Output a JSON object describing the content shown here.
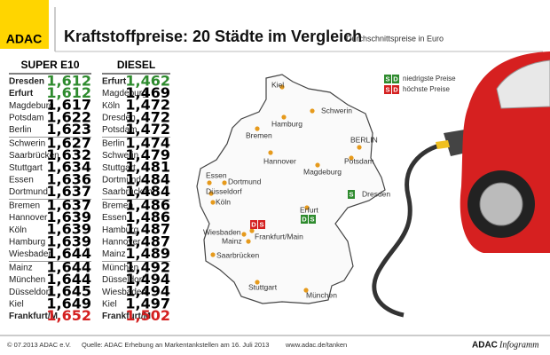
{
  "header": {
    "logo": "ADAC",
    "title": "Kraftstoffpreise: 20 Städte im Vergleich",
    "subtitle": "Durchschnittspreise in Euro"
  },
  "tables": [
    {
      "title": "SUPER E10",
      "rows": [
        {
          "city": "Dresden",
          "price": "1,612",
          "color": "#2e8b2e"
        },
        {
          "city": "Erfurt",
          "price": "1,612",
          "color": "#2e8b2e"
        },
        {
          "city": "Magdeburg",
          "price": "1,617"
        },
        {
          "city": "Potsdam",
          "price": "1,622"
        },
        {
          "city": "Berlin",
          "price": "1,623"
        },
        {
          "city": "Schwerin",
          "price": "1,627"
        },
        {
          "city": "Saarbrücken",
          "price": "1,632"
        },
        {
          "city": "Stuttgart",
          "price": "1,634"
        },
        {
          "city": "Essen",
          "price": "1,636"
        },
        {
          "city": "Dortmund",
          "price": "1,637"
        },
        {
          "city": "Bremen",
          "price": "1,637"
        },
        {
          "city": "Hannover",
          "price": "1,639"
        },
        {
          "city": "Köln",
          "price": "1,639"
        },
        {
          "city": "Hamburg",
          "price": "1,639"
        },
        {
          "city": "Wiesbaden",
          "price": "1,644"
        },
        {
          "city": "Mainz",
          "price": "1,644"
        },
        {
          "city": "München",
          "price": "1,644"
        },
        {
          "city": "Düsseldorf",
          "price": "1,645"
        },
        {
          "city": "Kiel",
          "price": "1,649"
        },
        {
          "city": "Frankfurt/M",
          "price": "1,652",
          "color": "#d42020"
        }
      ]
    },
    {
      "title": "DIESEL",
      "rows": [
        {
          "city": "Erfurt",
          "price": "1,462",
          "color": "#2e8b2e"
        },
        {
          "city": "Magdeburg",
          "price": "1,469"
        },
        {
          "city": "Köln",
          "price": "1,472"
        },
        {
          "city": "Dresden",
          "price": "1,472"
        },
        {
          "city": "Potsdam",
          "price": "1,472"
        },
        {
          "city": "Berlin",
          "price": "1,474"
        },
        {
          "city": "Schwerin",
          "price": "1,479"
        },
        {
          "city": "Stuttgart",
          "price": "1,481"
        },
        {
          "city": "Dortmund",
          "price": "1,484"
        },
        {
          "city": "Saarbrücken",
          "price": "1,484"
        },
        {
          "city": "Bremen",
          "price": "1,486"
        },
        {
          "city": "Essen",
          "price": "1,486"
        },
        {
          "city": "Hamburg",
          "price": "1,487"
        },
        {
          "city": "Hannover",
          "price": "1,487"
        },
        {
          "city": "Mainz",
          "price": "1,489"
        },
        {
          "city": "München",
          "price": "1,492"
        },
        {
          "city": "Düsseldorf",
          "price": "1,494"
        },
        {
          "city": "Wiesbaden",
          "price": "1,494"
        },
        {
          "city": "Kiel",
          "price": "1,497"
        },
        {
          "city": "Frankfurt/M",
          "price": "1,502",
          "color": "#d42020"
        }
      ]
    }
  ],
  "legend": [
    {
      "badges": [
        "S",
        "D"
      ],
      "label": "niedrigste Preise",
      "color": "#2e8b2e"
    },
    {
      "badges": [
        "S",
        "D"
      ],
      "label": "höchste Preise",
      "color": "#d42020"
    }
  ],
  "map": {
    "cities": [
      {
        "label": "Kiel"
      },
      {
        "label": "Schwerin"
      },
      {
        "label": "Hamburg"
      },
      {
        "label": "Bremen"
      },
      {
        "label": "BERLIN"
      },
      {
        "label": "Potsdam"
      },
      {
        "label": "Hannover"
      },
      {
        "label": "Magdeburg"
      },
      {
        "label": "Essen"
      },
      {
        "label": "Dortmund"
      },
      {
        "label": "Düsseldorf"
      },
      {
        "label": "Köln"
      },
      {
        "label": "Dresden",
        "badges": [
          "S"
        ],
        "color": "#2e8b2e"
      },
      {
        "label": "Erfurt",
        "badges": [
          "D",
          "S"
        ],
        "color": "#2e8b2e"
      },
      {
        "label": "Wiesbaden"
      },
      {
        "label": "Mainz"
      },
      {
        "label": "Frankfurt/Main",
        "badges": [
          "D",
          "S"
        ],
        "color": "#d42020"
      },
      {
        "label": "Saarbrücken"
      },
      {
        "label": "Stuttgart"
      },
      {
        "label": "München"
      }
    ]
  },
  "footer": {
    "copyright": "© 07.2013 ADAC e.V.",
    "source": "Quelle: ADAC Erhebung an Markentankstellen am 16. Juli 2013",
    "url": "www.adac.de/tanken",
    "brand": "ADAC",
    "brand_sub": "Infogramm"
  }
}
